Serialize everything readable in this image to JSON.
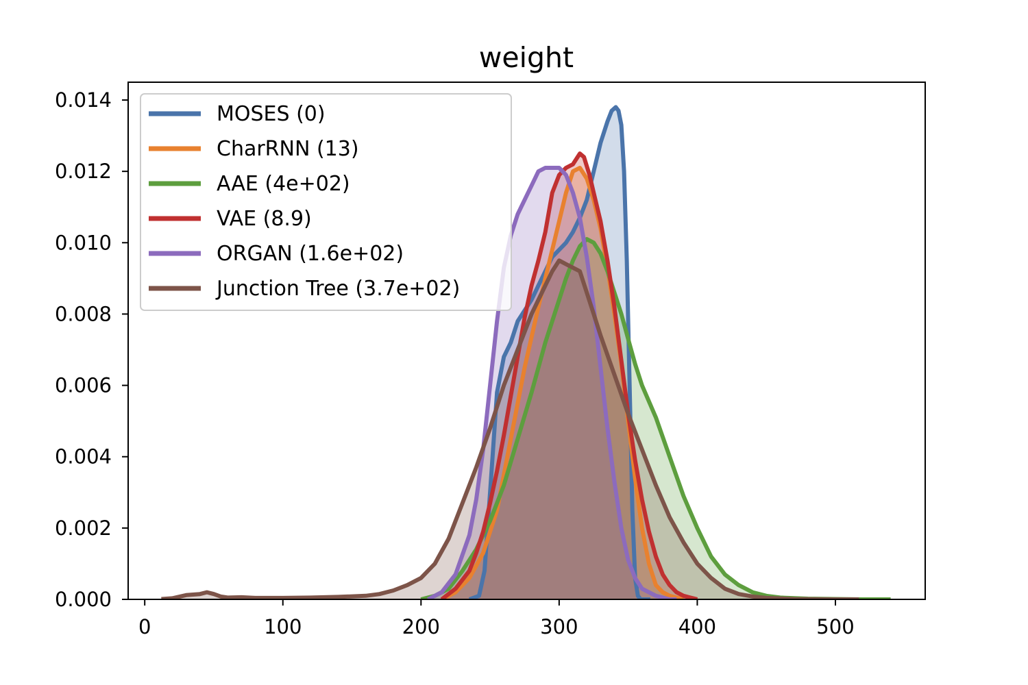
{
  "chart_data": {
    "type": "area",
    "title": "weight",
    "xlabel": "",
    "ylabel": "",
    "xlim": [
      -12,
      565
    ],
    "ylim": [
      0,
      0.0145
    ],
    "xticks": [
      0,
      100,
      200,
      300,
      400,
      500
    ],
    "xtick_labels": [
      "0",
      "100",
      "200",
      "300",
      "400",
      "500"
    ],
    "yticks": [
      0,
      0.002,
      0.004,
      0.006,
      0.008,
      0.01,
      0.012,
      0.014
    ],
    "ytick_labels": [
      "0.000",
      "0.002",
      "0.004",
      "0.006",
      "0.008",
      "0.010",
      "0.012",
      "0.014"
    ],
    "grid": false,
    "legend_position": "top-left",
    "series": [
      {
        "name": "MOSES (0)",
        "color": "#4a74aa",
        "x": [
          235,
          242,
          246,
          250,
          255,
          260,
          265,
          270,
          275,
          280,
          285,
          290,
          295,
          300,
          305,
          310,
          315,
          320,
          325,
          330,
          335,
          338,
          341,
          343,
          345,
          347,
          349,
          351,
          353,
          355,
          357,
          359,
          362,
          366
        ],
        "y": [
          0,
          0.0001,
          0.0008,
          0.003,
          0.0058,
          0.0068,
          0.0072,
          0.0078,
          0.0081,
          0.0084,
          0.0088,
          0.0092,
          0.0096,
          0.0098,
          0.01,
          0.0103,
          0.0107,
          0.0112,
          0.012,
          0.0128,
          0.0134,
          0.0137,
          0.0138,
          0.0137,
          0.0133,
          0.012,
          0.0095,
          0.006,
          0.0025,
          0.0006,
          0.0001,
          0,
          0,
          0
        ]
      },
      {
        "name": "CharRNN (13)",
        "color": "#e8812f",
        "x": [
          215,
          225,
          235,
          245,
          255,
          265,
          275,
          285,
          295,
          300,
          305,
          310,
          315,
          320,
          325,
          330,
          335,
          340,
          345,
          350,
          355,
          360,
          365,
          370,
          375,
          380,
          390
        ],
        "y": [
          0,
          0.0002,
          0.0006,
          0.0013,
          0.0025,
          0.0045,
          0.0065,
          0.0082,
          0.0098,
          0.0106,
          0.0114,
          0.012,
          0.0121,
          0.0118,
          0.0112,
          0.0104,
          0.0093,
          0.008,
          0.0066,
          0.005,
          0.0034,
          0.002,
          0.001,
          0.0004,
          0.0002,
          0.0001,
          0
        ]
      },
      {
        "name": "AAE (4e+02)",
        "color": "#5d9e3e",
        "x": [
          200,
          210,
          220,
          230,
          240,
          250,
          260,
          270,
          280,
          290,
          300,
          305,
          310,
          315,
          320,
          325,
          330,
          335,
          340,
          345,
          350,
          355,
          360,
          370,
          380,
          390,
          400,
          410,
          420,
          430,
          440,
          450,
          460,
          480,
          500,
          520,
          540
        ],
        "y": [
          0,
          0.0001,
          0.0003,
          0.0008,
          0.0014,
          0.0022,
          0.0032,
          0.0045,
          0.0058,
          0.0072,
          0.0084,
          0.009,
          0.0095,
          0.0099,
          0.0101,
          0.01,
          0.0097,
          0.0092,
          0.0086,
          0.008,
          0.0073,
          0.0066,
          0.006,
          0.0051,
          0.004,
          0.0029,
          0.002,
          0.0012,
          0.0007,
          0.0004,
          0.0002,
          0.0001,
          5e-05,
          2e-05,
          1e-05,
          0,
          0
        ]
      },
      {
        "name": "VAE (8.9)",
        "color": "#c03030",
        "x": [
          215,
          225,
          235,
          240,
          245,
          250,
          255,
          260,
          265,
          270,
          275,
          280,
          285,
          290,
          295,
          300,
          305,
          310,
          315,
          318,
          322,
          325,
          330,
          335,
          340,
          345,
          350,
          355,
          360,
          365,
          370,
          375,
          380,
          385,
          390,
          395,
          400
        ],
        "y": [
          0,
          0.0003,
          0.0008,
          0.0013,
          0.0019,
          0.0027,
          0.0036,
          0.0046,
          0.0057,
          0.0068,
          0.0079,
          0.0088,
          0.0095,
          0.0103,
          0.0114,
          0.0119,
          0.0121,
          0.0122,
          0.0125,
          0.0124,
          0.0119,
          0.0114,
          0.0106,
          0.0095,
          0.0082,
          0.0067,
          0.0052,
          0.0039,
          0.0028,
          0.0019,
          0.0012,
          0.0007,
          0.0004,
          0.0002,
          0.0001,
          5e-05,
          0
        ]
      },
      {
        "name": "ORGAN (1.6e+02)",
        "color": "#8c6bbd",
        "x": [
          205,
          215,
          225,
          235,
          240,
          245,
          250,
          255,
          260,
          265,
          270,
          275,
          280,
          285,
          290,
          295,
          300,
          305,
          310,
          315,
          320,
          325,
          330,
          335,
          340,
          345,
          350,
          355,
          360,
          365,
          370,
          375,
          380,
          385
        ],
        "y": [
          0,
          0.0002,
          0.0007,
          0.0018,
          0.0028,
          0.0042,
          0.006,
          0.0078,
          0.0093,
          0.0102,
          0.0108,
          0.0112,
          0.0116,
          0.012,
          0.0121,
          0.0121,
          0.0121,
          0.0119,
          0.0114,
          0.0107,
          0.0096,
          0.0082,
          0.0065,
          0.0048,
          0.0033,
          0.002,
          0.0011,
          0.0006,
          0.0003,
          0.0002,
          0.0001,
          5e-05,
          0,
          0
        ]
      },
      {
        "name": "Junction Tree (3.7e+02)",
        "color": "#7d5449",
        "x": [
          12,
          20,
          30,
          40,
          45,
          50,
          55,
          60,
          70,
          80,
          100,
          120,
          140,
          160,
          170,
          180,
          190,
          200,
          210,
          220,
          230,
          240,
          250,
          260,
          270,
          280,
          290,
          295,
          300,
          305,
          310,
          315,
          320,
          325,
          330,
          340,
          350,
          360,
          370,
          380,
          390,
          400,
          410,
          420,
          430,
          440,
          450,
          470,
          500,
          517
        ],
        "y": [
          1e-05,
          3e-05,
          0.00012,
          0.00015,
          0.0002,
          0.00015,
          8e-05,
          5e-05,
          6e-05,
          4e-05,
          4e-05,
          5e-05,
          7e-05,
          0.0001,
          0.00015,
          0.00025,
          0.0004,
          0.0006,
          0.001,
          0.0017,
          0.0027,
          0.0037,
          0.0048,
          0.006,
          0.007,
          0.008,
          0.0088,
          0.0092,
          0.0095,
          0.0094,
          0.0093,
          0.0092,
          0.0086,
          0.008,
          0.0074,
          0.0063,
          0.0052,
          0.0042,
          0.0032,
          0.0023,
          0.0016,
          0.001,
          0.0006,
          0.0003,
          0.00015,
          8e-05,
          4e-05,
          1e-05,
          0,
          0
        ]
      }
    ]
  }
}
